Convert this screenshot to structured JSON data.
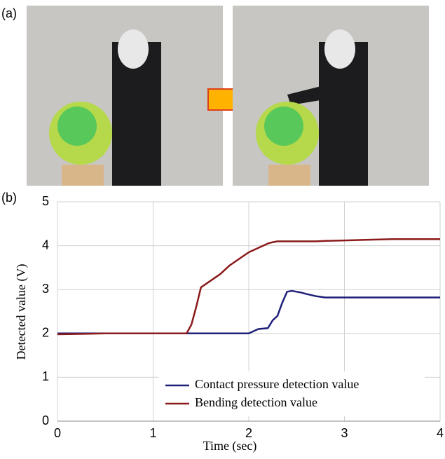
{
  "panel_labels": {
    "a": "(a)",
    "b": "(b)"
  },
  "chart_data": {
    "type": "line",
    "x_label": "Time (sec)",
    "y_label": "Detected value (V)",
    "x": [
      0,
      0.5,
      1,
      1.35,
      1.4,
      1.45,
      1.5,
      1.6,
      1.7,
      1.8,
      1.9,
      2.0,
      2.05,
      2.1,
      2.2,
      2.25,
      2.3,
      2.35,
      2.4,
      2.45,
      2.55,
      2.6,
      2.7,
      2.8,
      3.0,
      3.5,
      4.0
    ],
    "series": [
      {
        "name": "Contact pressure detection value",
        "color": "#1f1f7a",
        "values": [
          2,
          2,
          2,
          2,
          2,
          2,
          2,
          2,
          2,
          2,
          2,
          2,
          2.05,
          2.1,
          2.12,
          2.3,
          2.4,
          2.7,
          2.95,
          2.97,
          2.93,
          2.9,
          2.85,
          2.82,
          2.82,
          2.82,
          2.82
        ]
      },
      {
        "name": "Bending detection value",
        "color": "#8b1a1a",
        "values": [
          1.98,
          2,
          2,
          2,
          2.2,
          2.6,
          3.05,
          3.2,
          3.35,
          3.55,
          3.7,
          3.85,
          3.9,
          3.95,
          4.05,
          4.08,
          4.1,
          4.1,
          4.1,
          4.1,
          4.1,
          4.1,
          4.1,
          4.11,
          4.12,
          4.15,
          4.15
        ]
      }
    ],
    "xlim": [
      0,
      4
    ],
    "xticks": [
      0,
      1,
      2,
      3,
      4
    ],
    "ylim": [
      0,
      5
    ],
    "yticks": [
      0,
      1,
      2,
      3,
      4,
      5
    ],
    "grid": true,
    "legend": "lower right"
  }
}
